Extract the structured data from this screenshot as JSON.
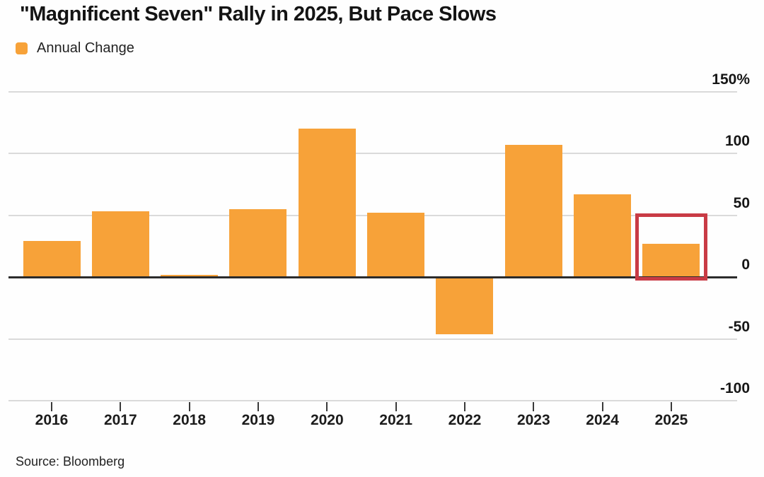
{
  "title": "\"Magnificent Seven\" Rally in 2025, But Pace Slows",
  "legend": {
    "label": "Annual Change"
  },
  "source": "Source: Bloomberg",
  "colors": {
    "bar": "#f7a239",
    "highlight_box": "#c93b45",
    "gridline": "#dadada",
    "zero_line": "#2b2b2b",
    "text": "#1a1a1a"
  },
  "chart_data": {
    "type": "bar",
    "title": "\"Magnificent Seven\" Rally in 2025, But Pace Slows",
    "legend_entries": [
      "Annual Change"
    ],
    "legend_position": "top-left",
    "categories": [
      "2016",
      "2017",
      "2018",
      "2019",
      "2020",
      "2021",
      "2022",
      "2023",
      "2024",
      "2025"
    ],
    "values": [
      29,
      53,
      2,
      55,
      120,
      52,
      -46,
      107,
      67,
      27
    ],
    "unit": "%",
    "xlabel": "",
    "ylabel": "",
    "yticks": [
      150,
      100,
      50,
      0,
      -50,
      -100
    ],
    "ytick_labels": [
      "150%",
      "100",
      "50",
      "0",
      "-50",
      "-100"
    ],
    "ylim": [
      -115,
      160
    ],
    "grid": "horizontal",
    "axis_side": "right",
    "annotations": [
      {
        "type": "highlight-box",
        "category": "2025",
        "note": "red box around 2025 bar"
      }
    ],
    "source": "Source: Bloomberg"
  }
}
